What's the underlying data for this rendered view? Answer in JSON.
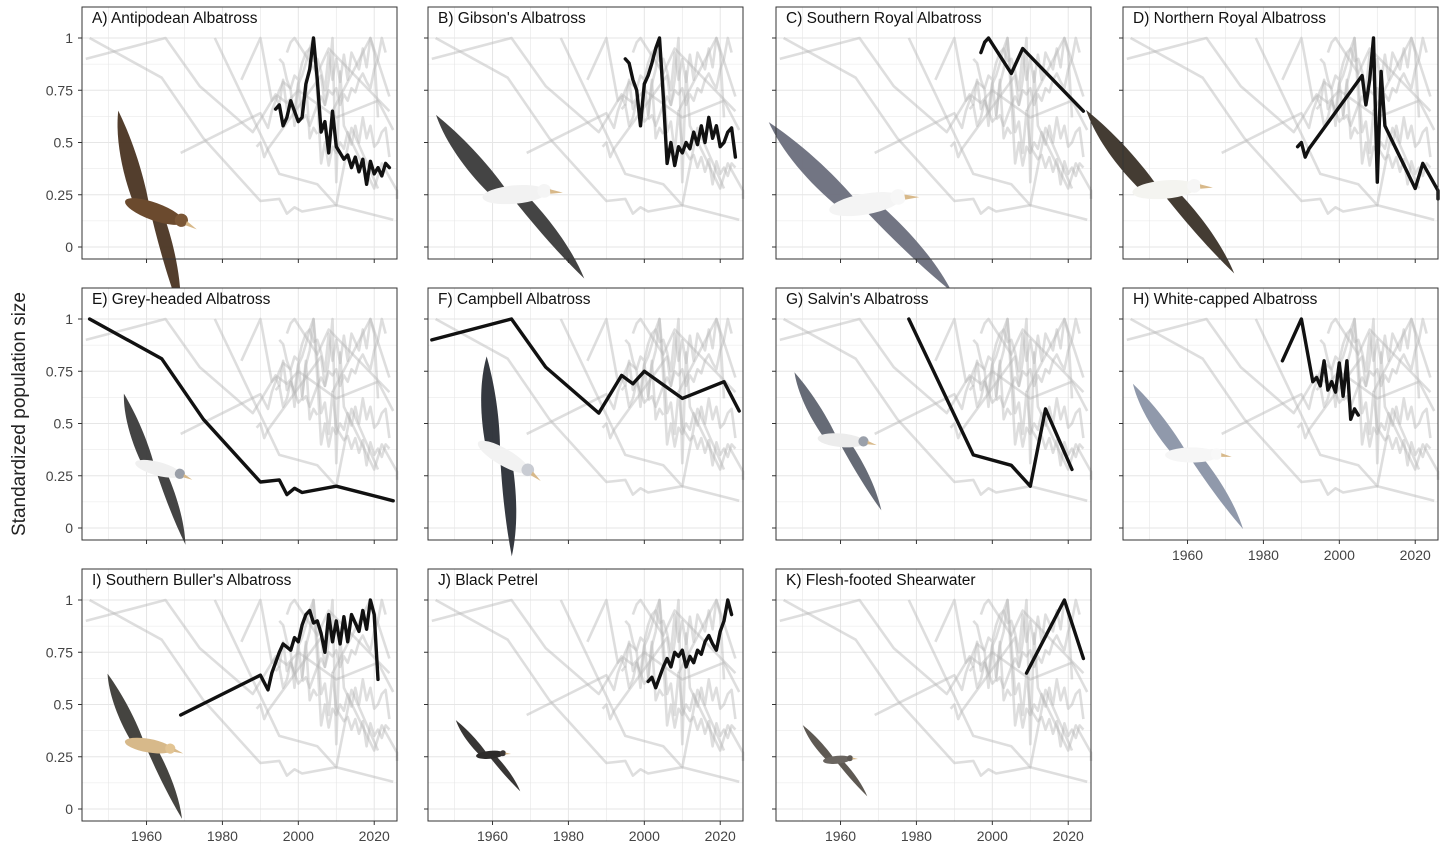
{
  "chart_data": {
    "type": "line",
    "ylabel": "Standardized population size",
    "ylim": [
      0,
      1
    ],
    "xlim": [
      1943,
      2026
    ],
    "x_ticks": [
      1960,
      1980,
      2000,
      2020
    ],
    "y_ticks": [
      {
        "value": 0,
        "label": "0"
      },
      {
        "value": 0.25,
        "label": "0.25"
      },
      {
        "value": 0.5,
        "label": "0.5"
      },
      {
        "value": 0.75,
        "label": "0.75"
      },
      {
        "value": 1,
        "label": "1"
      }
    ],
    "grid": true,
    "layout": "small multiples, 3 rows x 4 columns; each panel highlights one species (black) over all other species (grey)",
    "colors": {
      "highlight": "#111111",
      "background_series": "#b5b5b5",
      "panel_border": "#333333",
      "grid": "#e6e6e6"
    },
    "panels": [
      {
        "label": "A) Antipodean Albatross",
        "bird_icon": "brown-albatross-photo",
        "series": [
          [
            1994,
            0.66
          ],
          [
            1995,
            0.68
          ],
          [
            1996,
            0.58
          ],
          [
            1997,
            0.62
          ],
          [
            1998,
            0.7
          ],
          [
            1999,
            0.65
          ],
          [
            2000,
            0.6
          ],
          [
            2001,
            0.62
          ],
          [
            2002,
            0.78
          ],
          [
            2003,
            0.85
          ],
          [
            2004,
            1.0
          ],
          [
            2005,
            0.8
          ],
          [
            2006,
            0.55
          ],
          [
            2007,
            0.6
          ],
          [
            2008,
            0.45
          ],
          [
            2009,
            0.65
          ],
          [
            2010,
            0.48
          ],
          [
            2011,
            0.45
          ],
          [
            2012,
            0.42
          ],
          [
            2013,
            0.44
          ],
          [
            2014,
            0.38
          ],
          [
            2015,
            0.43
          ],
          [
            2016,
            0.36
          ],
          [
            2017,
            0.42
          ],
          [
            2018,
            0.3
          ],
          [
            2019,
            0.41
          ],
          [
            2020,
            0.35
          ],
          [
            2021,
            0.38
          ],
          [
            2022,
            0.34
          ],
          [
            2023,
            0.4
          ],
          [
            2024,
            0.38
          ]
        ]
      },
      {
        "label": "B) Gibson's Albatross",
        "bird_icon": "white-albatross-photo",
        "series": [
          [
            1995,
            0.9
          ],
          [
            1996,
            0.88
          ],
          [
            1997,
            0.8
          ],
          [
            1998,
            0.75
          ],
          [
            1999,
            0.58
          ],
          [
            2000,
            0.78
          ],
          [
            2001,
            0.82
          ],
          [
            2002,
            0.88
          ],
          [
            2003,
            0.95
          ],
          [
            2004,
            1.0
          ],
          [
            2005,
            0.72
          ],
          [
            2006,
            0.4
          ],
          [
            2007,
            0.5
          ],
          [
            2008,
            0.39
          ],
          [
            2009,
            0.48
          ],
          [
            2010,
            0.45
          ],
          [
            2011,
            0.5
          ],
          [
            2012,
            0.47
          ],
          [
            2013,
            0.55
          ],
          [
            2014,
            0.49
          ],
          [
            2015,
            0.58
          ],
          [
            2016,
            0.5
          ],
          [
            2017,
            0.62
          ],
          [
            2018,
            0.52
          ],
          [
            2019,
            0.58
          ],
          [
            2020,
            0.48
          ],
          [
            2021,
            0.5
          ],
          [
            2022,
            0.55
          ],
          [
            2023,
            0.57
          ],
          [
            2024,
            0.43
          ]
        ]
      },
      {
        "label": "C) Southern Royal Albatross",
        "bird_icon": "royal-albatross-photo",
        "series": [
          [
            1997,
            0.93
          ],
          [
            1998,
            0.98
          ],
          [
            1999,
            1.0
          ],
          [
            2005,
            0.83
          ],
          [
            2008,
            0.95
          ],
          [
            2024,
            0.65
          ]
        ]
      },
      {
        "label": "D) Northern Royal Albatross",
        "bird_icon": "northern-royal-albatross-photo",
        "series": [
          [
            1989,
            0.48
          ],
          [
            1990,
            0.5
          ],
          [
            1991,
            0.43
          ],
          [
            1992,
            0.47
          ],
          [
            2006,
            0.82
          ],
          [
            2007,
            0.68
          ],
          [
            2008,
            0.8
          ],
          [
            2009,
            1.0
          ],
          [
            2010,
            0.31
          ],
          [
            2011,
            0.84
          ],
          [
            2012,
            0.58
          ],
          [
            2020,
            0.28
          ],
          [
            2022,
            0.4
          ],
          [
            2026,
            0.27
          ],
          [
            2029,
            0.25
          ],
          [
            2030,
            0.23
          ]
        ]
      },
      {
        "label": "E) Grey-headed Albatross",
        "bird_icon": "grey-headed-albatross-photo",
        "series": [
          [
            1945,
            1.0
          ],
          [
            1964,
            0.81
          ],
          [
            1975,
            0.52
          ],
          [
            1990,
            0.22
          ],
          [
            1995,
            0.23
          ],
          [
            1997,
            0.16
          ],
          [
            1999,
            0.19
          ],
          [
            2001,
            0.17
          ],
          [
            2010,
            0.2
          ],
          [
            2025,
            0.13
          ]
        ]
      },
      {
        "label": "F) Campbell Albatross",
        "bird_icon": "campbell-albatross-photo",
        "series": [
          [
            1944,
            0.9
          ],
          [
            1965,
            1.0
          ],
          [
            1974,
            0.77
          ],
          [
            1988,
            0.55
          ],
          [
            1994,
            0.73
          ],
          [
            1997,
            0.69
          ],
          [
            2000,
            0.75
          ],
          [
            2010,
            0.62
          ],
          [
            2021,
            0.7
          ],
          [
            2025,
            0.56
          ]
        ]
      },
      {
        "label": "G) Salvin's Albatross",
        "bird_icon": "salvins-albatross-photo",
        "series": [
          [
            1978,
            1.0
          ],
          [
            1995,
            0.35
          ],
          [
            2005,
            0.3
          ],
          [
            2010,
            0.2
          ],
          [
            2014,
            0.57
          ],
          [
            2021,
            0.28
          ]
        ]
      },
      {
        "label": "H) White-capped Albatross",
        "bird_icon": "white-capped-albatross-photo",
        "series": [
          [
            1985,
            0.8
          ],
          [
            1987,
            0.88
          ],
          [
            1990,
            1.0
          ],
          [
            1991,
            0.9
          ],
          [
            1993,
            0.7
          ],
          [
            1994,
            0.72
          ],
          [
            1995,
            0.68
          ],
          [
            1996,
            0.8
          ],
          [
            1997,
            0.66
          ],
          [
            1998,
            0.7
          ],
          [
            1999,
            0.65
          ],
          [
            2000,
            0.79
          ],
          [
            2001,
            0.63
          ],
          [
            2002,
            0.8
          ],
          [
            2003,
            0.52
          ],
          [
            2004,
            0.57
          ],
          [
            2005,
            0.54
          ]
        ]
      },
      {
        "label": "I) Southern Buller's Albatross",
        "bird_icon": "bullers-albatross-photo",
        "series": [
          [
            1969,
            0.45
          ],
          [
            1990,
            0.64
          ],
          [
            1992,
            0.57
          ],
          [
            1993,
            0.65
          ],
          [
            1995,
            0.75
          ],
          [
            1996,
            0.79
          ],
          [
            1998,
            0.76
          ],
          [
            1999,
            0.82
          ],
          [
            2000,
            0.8
          ],
          [
            2001,
            0.88
          ],
          [
            2002,
            0.93
          ],
          [
            2003,
            0.95
          ],
          [
            2004,
            0.89
          ],
          [
            2005,
            0.9
          ],
          [
            2006,
            0.84
          ],
          [
            2007,
            0.75
          ],
          [
            2008,
            0.93
          ],
          [
            2009,
            0.8
          ],
          [
            2010,
            0.9
          ],
          [
            2011,
            0.79
          ],
          [
            2012,
            0.92
          ],
          [
            2013,
            0.8
          ],
          [
            2014,
            0.93
          ],
          [
            2015,
            0.89
          ],
          [
            2016,
            0.85
          ],
          [
            2017,
            0.95
          ],
          [
            2018,
            0.86
          ],
          [
            2019,
            1.0
          ],
          [
            2020,
            0.93
          ],
          [
            2021,
            0.62
          ]
        ]
      },
      {
        "label": "J) Black Petrel",
        "bird_icon": "black-petrel-photo",
        "series": [
          [
            2001,
            0.61
          ],
          [
            2002,
            0.63
          ],
          [
            2003,
            0.58
          ],
          [
            2004,
            0.63
          ],
          [
            2005,
            0.68
          ],
          [
            2006,
            0.72
          ],
          [
            2007,
            0.68
          ],
          [
            2008,
            0.75
          ],
          [
            2009,
            0.73
          ],
          [
            2010,
            0.76
          ],
          [
            2011,
            0.68
          ],
          [
            2012,
            0.73
          ],
          [
            2013,
            0.7
          ],
          [
            2014,
            0.76
          ],
          [
            2015,
            0.74
          ],
          [
            2016,
            0.8
          ],
          [
            2017,
            0.83
          ],
          [
            2018,
            0.79
          ],
          [
            2019,
            0.76
          ],
          [
            2020,
            0.85
          ],
          [
            2021,
            0.9
          ],
          [
            2022,
            1.0
          ],
          [
            2023,
            0.93
          ]
        ]
      },
      {
        "label": "K) Flesh-footed Shearwater",
        "bird_icon": "flesh-footed-shearwater-photo",
        "series": [
          [
            2009,
            0.65
          ],
          [
            2019,
            1.0
          ],
          [
            2024,
            0.72
          ]
        ]
      }
    ]
  }
}
